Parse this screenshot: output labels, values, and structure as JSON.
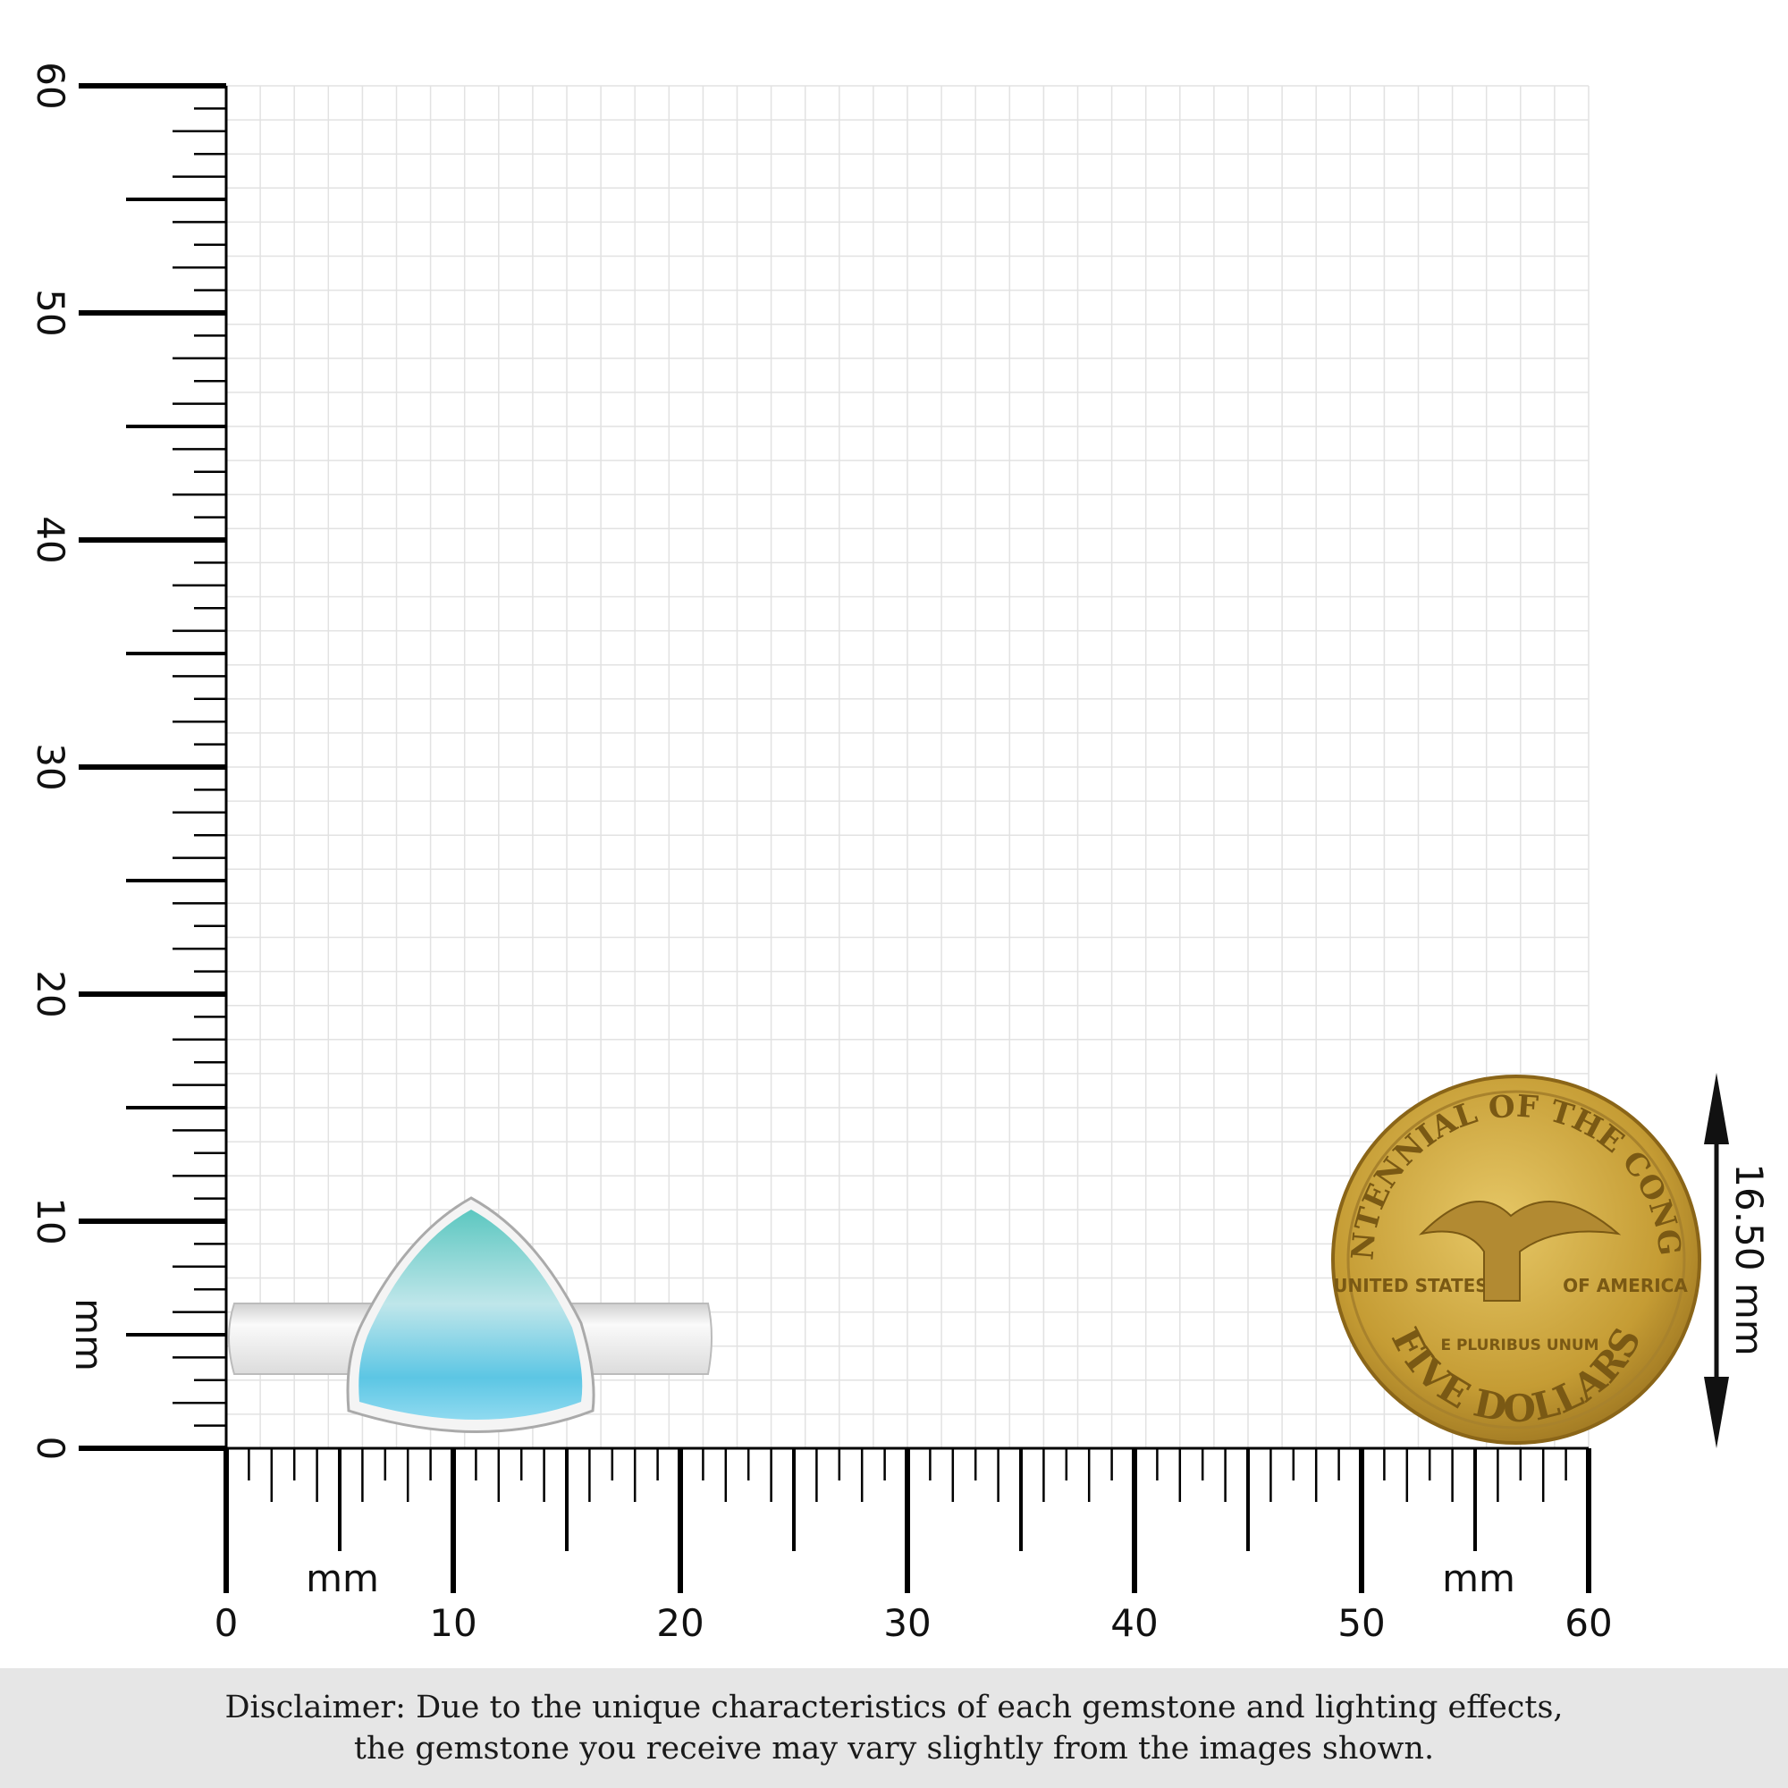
{
  "ruler": {
    "unit_label": "mm",
    "x_range": [
      0,
      60
    ],
    "y_range": [
      0,
      60
    ],
    "x_tick_labels": [
      "0",
      "10",
      "20",
      "30",
      "40",
      "50",
      "60"
    ],
    "y_tick_labels": [
      "0",
      "10",
      "20",
      "30",
      "40",
      "50",
      "60"
    ]
  },
  "coin": {
    "top_text": "BICENTENNIAL OF THE CONGRESS",
    "left_text": "UNITED STATES",
    "right_text": "OF AMERICA",
    "motto": "E PLURIBUS UNUM",
    "bottom_text": "FIVE DOLLARS",
    "color": "#c9a23a"
  },
  "coin_dimension": "16.50 mm",
  "product": {
    "gem_color": "#6fd0dc",
    "metal_color": "#e8e8e8"
  },
  "disclaimer": {
    "line1": "Disclaimer: Due to the unique characteristics of each gemstone and lighting effects,",
    "line2": "the gemstone you receive may vary slightly from the images shown."
  }
}
